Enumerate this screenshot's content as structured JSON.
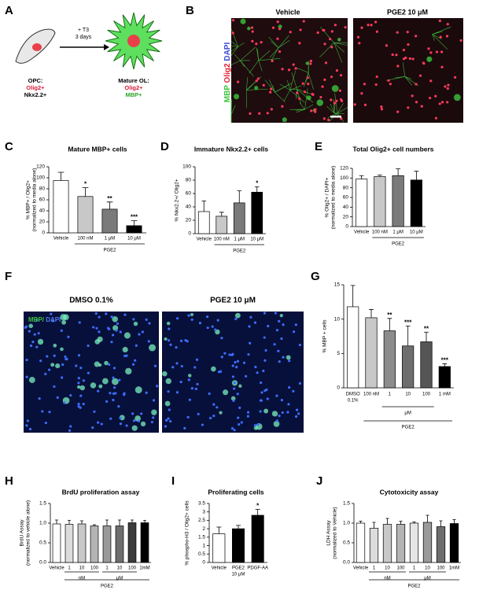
{
  "panel_a": {
    "label": "A",
    "arrow_text": [
      "+ T3",
      "3 days"
    ],
    "opc": {
      "title": "OPC:",
      "markers": [
        "Olig2+",
        "Nkx2.2+"
      ]
    },
    "mature": {
      "title": "Mature OL:",
      "markers": [
        "Olig2+",
        "MBP+"
      ]
    }
  },
  "panel_b": {
    "label": "B",
    "stain": [
      "MBP",
      "Olig2",
      "DAPI"
    ],
    "images": [
      "Vehicle",
      "PGE2 10 μM"
    ]
  },
  "panel_f": {
    "label": "F",
    "stain": [
      "MBP/",
      "DAPI"
    ],
    "images": [
      "DMSO 0.1%",
      "PGE2 10 μM"
    ]
  },
  "chart_data": [
    {
      "type": "bar",
      "panel": "C",
      "title": "Mature MBP+ cells",
      "ylabel": [
        "% MBP+ / Olig2+",
        "(normalized to media alone)"
      ],
      "categories": [
        "Vehicle",
        "100 nM",
        "1 μM",
        "10 μM"
      ],
      "values": [
        95,
        66,
        43,
        13
      ],
      "errors": [
        15,
        16,
        13,
        9
      ],
      "significance": [
        null,
        "*",
        "**",
        "***"
      ],
      "colors": [
        "#ffffff",
        "#c8c8c8",
        "#7a7a7a",
        "#000000"
      ],
      "groups": [
        {
          "label": "PGE2",
          "span": [
            1,
            3
          ]
        }
      ],
      "ylim": [
        0,
        120
      ],
      "yticks": [
        0,
        20,
        40,
        60,
        80,
        100,
        120
      ]
    },
    {
      "type": "bar",
      "panel": "D",
      "title": "Immature Nkx2.2+ cells",
      "ylabel": [
        "% Nkx2.2+/ Olig2+"
      ],
      "categories": [
        "Vehicle",
        "100 nM",
        "1 μM",
        "10 μM"
      ],
      "values": [
        33,
        26,
        46,
        62
      ],
      "errors": [
        16,
        6,
        18,
        8
      ],
      "significance": [
        null,
        null,
        null,
        "*"
      ],
      "colors": [
        "#ffffff",
        "#c8c8c8",
        "#7a7a7a",
        "#000000"
      ],
      "groups": [
        {
          "label": "PGE2",
          "span": [
            1,
            3
          ]
        }
      ],
      "ylim": [
        0,
        100
      ],
      "yticks": [
        0,
        20,
        40,
        60,
        80,
        100
      ]
    },
    {
      "type": "bar",
      "panel": "E",
      "title": "Total Olig2+ cell numbers",
      "ylabel": [
        "% Olig2+ / DAPI+",
        "(normalized to media alone)"
      ],
      "categories": [
        "Vehicle",
        "100 nM",
        "1 μM",
        "10 μM"
      ],
      "values": [
        98,
        103,
        105,
        96
      ],
      "errors": [
        7,
        3,
        14,
        18
      ],
      "significance": [
        null,
        null,
        null,
        null
      ],
      "colors": [
        "#ffffff",
        "#c8c8c8",
        "#7a7a7a",
        "#000000"
      ],
      "groups": [
        {
          "label": "PGE2",
          "span": [
            1,
            3
          ]
        }
      ],
      "ylim": [
        0,
        120
      ],
      "yticks": [
        0,
        20,
        40,
        60,
        80,
        100,
        120
      ]
    },
    {
      "type": "bar",
      "panel": "G",
      "title": null,
      "ylabel": [
        "% MBP + cells"
      ],
      "categories": [
        [
          "DMSO",
          "0.1%"
        ],
        "100 nM",
        "1",
        "10",
        "100",
        "1 mM"
      ],
      "values": [
        11.8,
        10.2,
        8.3,
        6.1,
        6.7,
        3.1
      ],
      "errors": [
        3.1,
        1.2,
        1.8,
        2.9,
        1.4,
        0.4
      ],
      "significance": [
        null,
        null,
        "**",
        "***",
        "**",
        "***"
      ],
      "colors": [
        "#ffffff",
        "#c8c8c8",
        "#8c8c8c",
        "#6e6e6e",
        "#555555",
        "#000000"
      ],
      "groups": [
        {
          "label": "μM",
          "span": [
            2,
            4
          ]
        },
        {
          "label": "PGE2",
          "span": [
            1,
            5
          ]
        }
      ],
      "ylim": [
        0,
        15
      ],
      "yticks": [
        0,
        5,
        10,
        15
      ]
    },
    {
      "type": "bar",
      "panel": "H",
      "title": "BrdU proliferation assay",
      "ylabel": [
        "BrdU Assay",
        "(normalized to vehicle alone)"
      ],
      "categories": [
        "Vehicle",
        "1",
        "10",
        "100",
        "1",
        "10",
        "100",
        "1mM"
      ],
      "values": [
        0.98,
        0.97,
        0.98,
        0.93,
        0.93,
        0.93,
        1.01,
        1.01
      ],
      "errors": [
        0.1,
        0.1,
        0.08,
        0.03,
        0.15,
        0.15,
        0.07,
        0.06
      ],
      "significance": [
        null,
        null,
        null,
        null,
        null,
        null,
        null,
        null
      ],
      "colors": [
        "#ffffff",
        "#dcdcdc",
        "#c8c8c8",
        "#b4b4b4",
        "#9a9a9a",
        "#6e6e6e",
        "#3c3c3c",
        "#000000"
      ],
      "groups": [
        {
          "label": "nM",
          "span": [
            1,
            3
          ]
        },
        {
          "label": "μM",
          "span": [
            4,
            6
          ]
        },
        {
          "label": "PGE2",
          "span": [
            1,
            7
          ]
        }
      ],
      "ylim": [
        0,
        1.5
      ],
      "yticks": [
        {
          "value": 0,
          "label": "0.0"
        },
        {
          "value": 0.5,
          "label": "0.5"
        },
        {
          "value": 1,
          "label": "1.0"
        },
        {
          "value": 1.5,
          "label": "1.5"
        }
      ]
    },
    {
      "type": "bar",
      "panel": "I",
      "title": "Proliferating cells",
      "ylabel": [
        "% phospho-H3 / Olig2+ cells"
      ],
      "categories": [
        "Vehicle",
        [
          "PGE2",
          "10 μM"
        ],
        "PDGF-AA"
      ],
      "values": [
        1.7,
        2.0,
        2.8
      ],
      "errors": [
        0.4,
        0.2,
        0.35
      ],
      "significance": [
        null,
        null,
        "*"
      ],
      "colors": [
        "#ffffff",
        "#000000",
        "#000000"
      ],
      "groups": [],
      "ylim": [
        0,
        3.5
      ],
      "yticks": [
        0,
        0.5,
        1,
        1.5,
        2,
        2.5,
        3,
        3.5
      ]
    },
    {
      "type": "bar",
      "panel": "J",
      "title": "Cytotoxicity assay",
      "ylabel": [
        "LDH Assay",
        "(normalized to Vehicle)"
      ],
      "categories": [
        "Vehicle",
        "1",
        "10",
        "100",
        "1",
        "10",
        "100",
        "1mM"
      ],
      "values": [
        1.0,
        0.87,
        0.97,
        0.97,
        1.0,
        1.02,
        0.91,
        0.99
      ],
      "errors": [
        0.05,
        0.15,
        0.15,
        0.08,
        0.03,
        0.18,
        0.15,
        0.1
      ],
      "significance": [
        null,
        null,
        null,
        null,
        null,
        null,
        null,
        null
      ],
      "colors": [
        "#ffffff",
        "#dcdcdc",
        "#c8c8c8",
        "#b4b4b4",
        "#e6e6e6",
        "#9a9a9a",
        "#6e6e6e",
        "#000000"
      ],
      "groups": [
        {
          "label": "nM",
          "span": [
            1,
            3
          ]
        },
        {
          "label": "μM",
          "span": [
            4,
            6
          ]
        },
        {
          "label": "PGE2",
          "span": [
            1,
            7
          ]
        }
      ],
      "ylim": [
        0,
        1.5
      ],
      "yticks": [
        {
          "value": 0,
          "label": "0.0"
        },
        {
          "value": 0.5,
          "label": "0.5"
        },
        {
          "value": 1,
          "label": "1.0"
        },
        {
          "value": 1.5,
          "label": "1.5"
        }
      ]
    }
  ]
}
